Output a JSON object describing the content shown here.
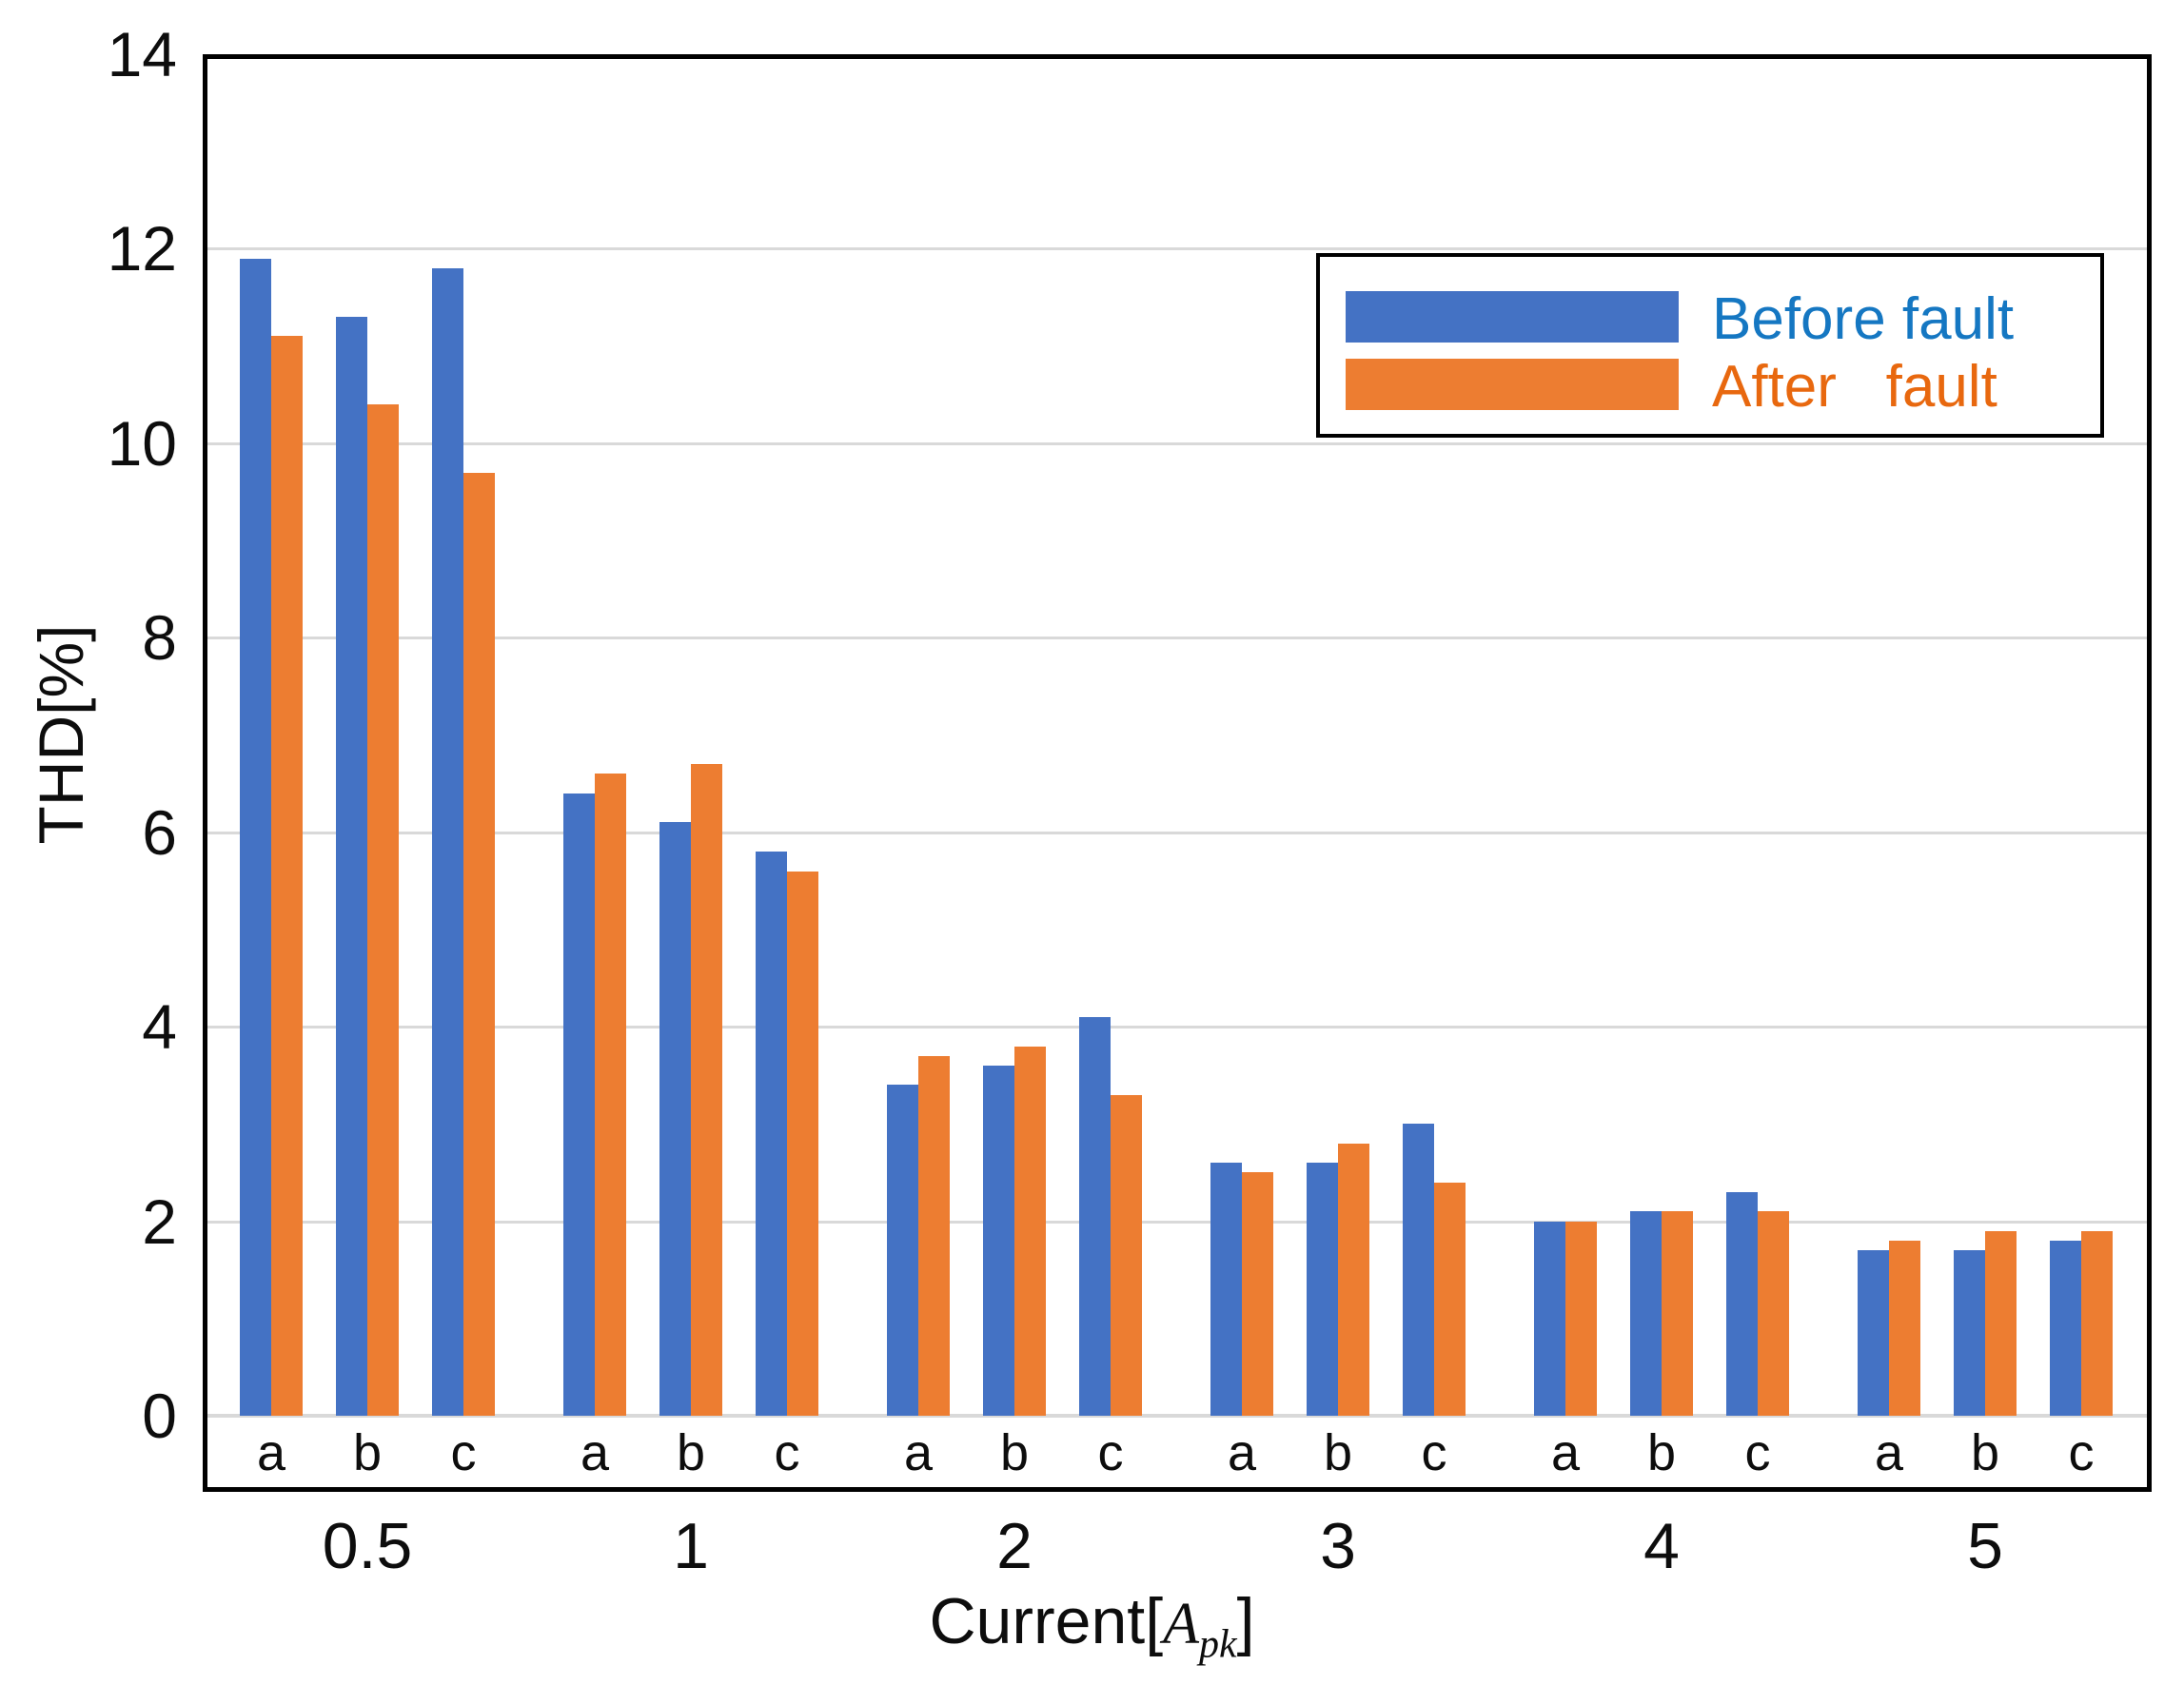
{
  "axes": {
    "y_title": "THD[%]",
    "x_title_prefix": "Current[",
    "x_title_symbol": "A",
    "x_title_subscript": "pk",
    "x_title_suffix": "]"
  },
  "legend": {
    "items": [
      {
        "label": "Before fault",
        "swatch_color": "#4472C4",
        "text_color": "#1577C2"
      },
      {
        "label": "After   fault",
        "swatch_color": "#ED7D31",
        "text_color": "#E8680F"
      }
    ]
  },
  "chart_data": {
    "type": "bar",
    "title": "",
    "ylabel": "THD[%]",
    "xlabel": "Current[A_pk]",
    "ylim": [
      0,
      14
    ],
    "y_ticks": [
      0,
      2,
      4,
      6,
      8,
      10,
      12,
      14
    ],
    "grid": true,
    "legend_position": "top-right-inside",
    "categories": [
      "0.5",
      "1",
      "2",
      "3",
      "4",
      "5"
    ],
    "phases": [
      "a",
      "b",
      "c"
    ],
    "series": [
      {
        "name": "Before fault",
        "color": "#4472C4",
        "values": [
          [
            11.9,
            11.3,
            11.8
          ],
          [
            6.4,
            6.1,
            5.8
          ],
          [
            3.4,
            3.6,
            4.1
          ],
          [
            2.6,
            2.6,
            3.0
          ],
          [
            2.0,
            2.1,
            2.3
          ],
          [
            1.7,
            1.7,
            1.8
          ]
        ]
      },
      {
        "name": "After fault",
        "color": "#ED7D31",
        "values": [
          [
            11.1,
            10.4,
            9.7
          ],
          [
            6.6,
            6.7,
            5.6
          ],
          [
            3.7,
            3.8,
            3.3
          ],
          [
            2.5,
            2.8,
            2.4
          ],
          [
            2.0,
            2.1,
            2.1
          ],
          [
            1.8,
            1.9,
            1.9
          ]
        ]
      }
    ],
    "colors": {
      "gridline": "#D9D9D9",
      "baseline": "#D9D9D9",
      "frame": "#000000"
    }
  }
}
